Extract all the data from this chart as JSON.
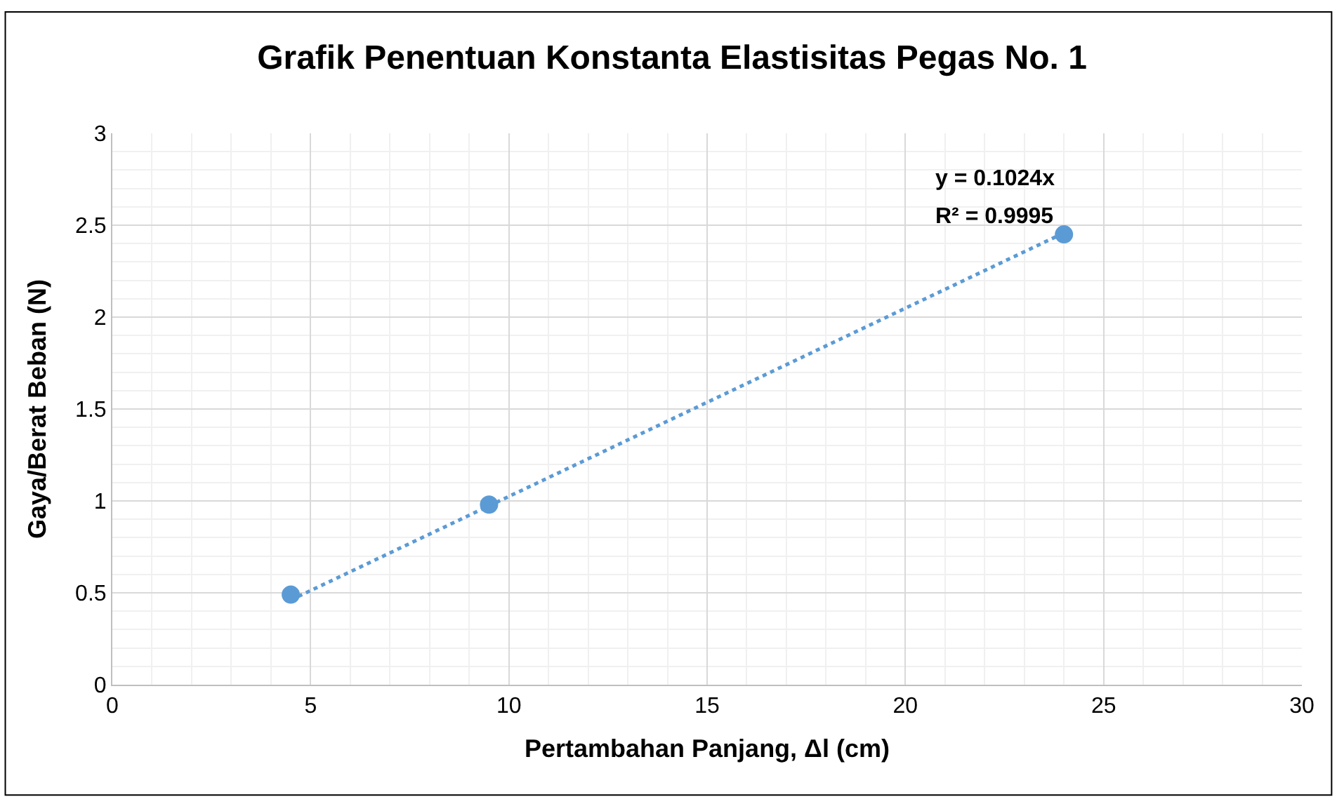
{
  "chart_data": {
    "type": "scatter",
    "title": "Grafik Penentuan Konstanta Elastisitas Pegas No. 1",
    "xlabel": "Pertambahan Panjang, Δl (cm)",
    "ylabel": "Gaya/Berat Beban (N)",
    "series": [
      {
        "color": "#5b9bd5",
        "x": [
          4.5,
          9.5,
          24
        ],
        "values": [
          0.49,
          0.98,
          2.45
        ],
        "marker": "circle"
      },
      {
        "type": "line",
        "color": "#5b9bd5",
        "x": [
          4.5,
          24
        ],
        "values": [
          0.461,
          2.458
        ],
        "marker": "none",
        "line_style": "dotted"
      }
    ],
    "annotations": [
      "y = 0.1024x",
      "R² = 0.9995"
    ],
    "xlim": [
      0,
      30
    ],
    "xticks": [
      0,
      5,
      10,
      15,
      20,
      25,
      30
    ],
    "ylim": [
      0,
      3
    ],
    "yticks": [
      0,
      0.5,
      1,
      1.5,
      2,
      2.5,
      3
    ],
    "grid": true
  }
}
